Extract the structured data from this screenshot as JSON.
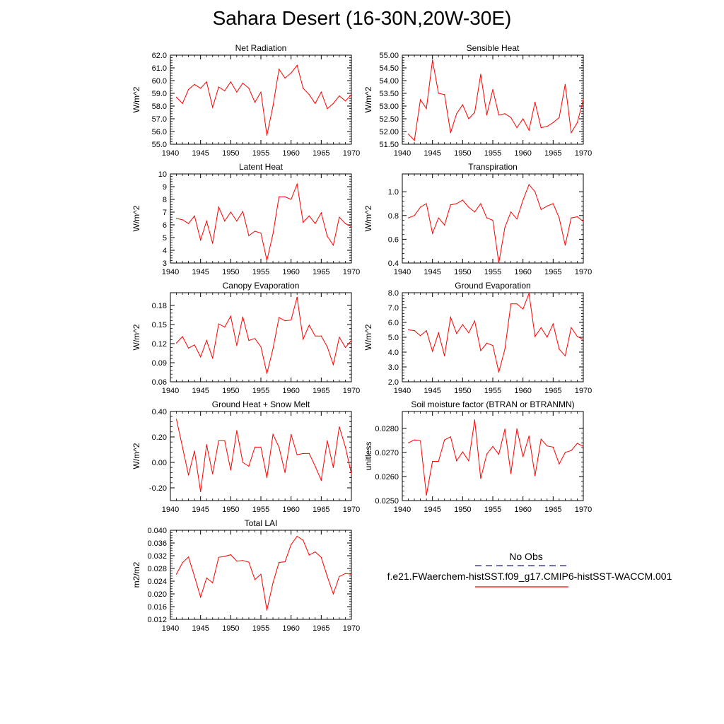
{
  "figure": {
    "title": "Sahara Desert (16-30N,20W-30E)"
  },
  "legend": {
    "items": [
      {
        "label": "No Obs",
        "color": "#1a1a8c",
        "style": "dashed"
      },
      {
        "label": "f.e21.FWaerchem-histSST.f09_g17.CMIP6-histSST-WACCM.001",
        "color": "#ff0000",
        "style": "solid"
      }
    ]
  },
  "chart_data": [
    {
      "type": "line",
      "title": "Net Radiation",
      "ylabel": "W/m^2",
      "xlim": [
        1940,
        1970
      ],
      "ylim": [
        55.0,
        62.0
      ],
      "xticks": [
        1940,
        1945,
        1950,
        1955,
        1960,
        1965,
        1970
      ],
      "xtick_labels": [
        "1940",
        "1945",
        "1950",
        "1955",
        "1960",
        "1965",
        "1970"
      ],
      "yticks": [
        55.0,
        56.0,
        57.0,
        58.0,
        59.0,
        60.0,
        61.0,
        62.0
      ],
      "ytick_labels": [
        "55.0",
        "56.0",
        "57.0",
        "58.0",
        "59.0",
        "60.0",
        "61.0",
        "62.0"
      ],
      "grid": false,
      "series": [
        {
          "color": "#ff0000",
          "x": [
            1941,
            1942,
            1943,
            1944,
            1945,
            1946,
            1947,
            1948,
            1949,
            1950,
            1951,
            1952,
            1953,
            1954,
            1955,
            1956,
            1957,
            1958,
            1959,
            1960,
            1961,
            1962,
            1963,
            1964,
            1965,
            1966,
            1967,
            1968,
            1969,
            1970
          ],
          "y": [
            58.7,
            58.2,
            59.3,
            59.7,
            59.4,
            59.9,
            57.9,
            59.5,
            59.2,
            59.9,
            59.1,
            59.8,
            59.4,
            58.3,
            59.1,
            55.7,
            58.0,
            60.9,
            60.2,
            60.6,
            61.2,
            59.4,
            58.9,
            58.2,
            59.1,
            57.8,
            58.2,
            58.8,
            58.4,
            58.9
          ]
        }
      ]
    },
    {
      "type": "line",
      "title": "Sensible Heat",
      "ylabel": "W/m^2",
      "xlim": [
        1940,
        1970
      ],
      "ylim": [
        51.5,
        55.0
      ],
      "xticks": [
        1940,
        1945,
        1950,
        1955,
        1960,
        1965,
        1970
      ],
      "xtick_labels": [
        "1940",
        "1945",
        "1950",
        "1955",
        "1960",
        "1965",
        "1970"
      ],
      "yticks": [
        51.5,
        52.0,
        52.5,
        53.0,
        53.5,
        54.0,
        54.5,
        55.0
      ],
      "ytick_labels": [
        "51.50",
        "52.00",
        "52.50",
        "53.00",
        "53.50",
        "54.00",
        "54.50",
        "55.00"
      ],
      "grid": false,
      "series": [
        {
          "color": "#ff0000",
          "x": [
            1941,
            1942,
            1943,
            1944,
            1945,
            1946,
            1947,
            1948,
            1949,
            1950,
            1951,
            1952,
            1953,
            1954,
            1955,
            1956,
            1957,
            1958,
            1959,
            1960,
            1961,
            1962,
            1963,
            1964,
            1965,
            1966,
            1967,
            1968,
            1969,
            1970
          ],
          "y": [
            51.9,
            51.65,
            53.25,
            52.9,
            54.8,
            53.5,
            53.45,
            51.95,
            52.7,
            53.05,
            52.5,
            52.75,
            54.25,
            52.65,
            53.65,
            52.65,
            52.7,
            52.55,
            52.15,
            52.5,
            52.05,
            53.15,
            52.15,
            52.2,
            52.35,
            52.55,
            53.85,
            51.95,
            52.35,
            53.25
          ]
        }
      ]
    },
    {
      "type": "line",
      "title": "Latent Heat",
      "ylabel": "W/m^2",
      "xlim": [
        1940,
        1970
      ],
      "ylim": [
        3,
        10
      ],
      "xticks": [
        1940,
        1945,
        1950,
        1955,
        1960,
        1965,
        1970
      ],
      "xtick_labels": [
        "1940",
        "1945",
        "1950",
        "1955",
        "1960",
        "1965",
        "1970"
      ],
      "yticks": [
        3,
        4,
        5,
        6,
        7,
        8,
        9,
        10
      ],
      "ytick_labels": [
        "3",
        "4",
        "5",
        "6",
        "7",
        "8",
        "9",
        "10"
      ],
      "grid": false,
      "series": [
        {
          "color": "#ff0000",
          "x": [
            1941,
            1942,
            1943,
            1944,
            1945,
            1946,
            1947,
            1948,
            1949,
            1950,
            1951,
            1952,
            1953,
            1954,
            1955,
            1956,
            1957,
            1958,
            1959,
            1960,
            1961,
            1962,
            1963,
            1964,
            1965,
            1966,
            1967,
            1968,
            1969,
            1970
          ],
          "y": [
            6.5,
            6.4,
            6.1,
            6.7,
            4.8,
            6.3,
            4.55,
            7.4,
            6.3,
            7.0,
            6.3,
            7.05,
            5.15,
            5.5,
            5.35,
            3.2,
            5.3,
            8.2,
            8.2,
            8.0,
            9.2,
            6.2,
            6.7,
            6.1,
            6.95,
            5.1,
            4.4,
            6.6,
            6.1,
            5.85
          ]
        }
      ]
    },
    {
      "type": "line",
      "title": "Transpiration",
      "ylabel": "W/m^2",
      "xlim": [
        1940,
        1970
      ],
      "ylim": [
        0.4,
        1.15
      ],
      "xticks": [
        1940,
        1945,
        1950,
        1955,
        1960,
        1965,
        1970
      ],
      "xtick_labels": [
        "1940",
        "1945",
        "1950",
        "1955",
        "1960",
        "1965",
        "1970"
      ],
      "yticks": [
        0.4,
        0.6,
        0.8,
        1.0
      ],
      "ytick_labels": [
        "0.4",
        "0.6",
        "0.8",
        "1.0"
      ],
      "grid": false,
      "series": [
        {
          "color": "#ff0000",
          "x": [
            1941,
            1942,
            1943,
            1944,
            1945,
            1946,
            1947,
            1948,
            1949,
            1950,
            1951,
            1952,
            1953,
            1954,
            1955,
            1956,
            1957,
            1958,
            1959,
            1960,
            1961,
            1962,
            1963,
            1964,
            1965,
            1966,
            1967,
            1968,
            1969,
            1970
          ],
          "y": [
            0.78,
            0.8,
            0.87,
            0.9,
            0.65,
            0.78,
            0.72,
            0.89,
            0.9,
            0.93,
            0.87,
            0.83,
            0.9,
            0.78,
            0.76,
            0.4,
            0.7,
            0.83,
            0.77,
            0.93,
            1.06,
            1.0,
            0.85,
            0.88,
            0.9,
            0.78,
            0.55,
            0.78,
            0.79,
            0.75
          ]
        }
      ]
    },
    {
      "type": "line",
      "title": "Canopy Evaporation",
      "ylabel": "W/m^2",
      "xlim": [
        1940,
        1970
      ],
      "ylim": [
        0.06,
        0.2
      ],
      "xticks": [
        1940,
        1945,
        1950,
        1955,
        1960,
        1965,
        1970
      ],
      "xtick_labels": [
        "1940",
        "1945",
        "1950",
        "1955",
        "1960",
        "1965",
        "1970"
      ],
      "yticks": [
        0.06,
        0.09,
        0.12,
        0.15,
        0.18
      ],
      "ytick_labels": [
        "0.06",
        "0.09",
        "0.12",
        "0.15",
        "0.18"
      ],
      "grid": false,
      "series": [
        {
          "color": "#ff0000",
          "x": [
            1941,
            1942,
            1943,
            1944,
            1945,
            1946,
            1947,
            1948,
            1949,
            1950,
            1951,
            1952,
            1953,
            1954,
            1955,
            1956,
            1957,
            1958,
            1959,
            1960,
            1961,
            1962,
            1963,
            1964,
            1965,
            1966,
            1967,
            1968,
            1969,
            1970
          ],
          "y": [
            0.121,
            0.131,
            0.113,
            0.118,
            0.099,
            0.125,
            0.097,
            0.151,
            0.146,
            0.163,
            0.117,
            0.162,
            0.125,
            0.128,
            0.115,
            0.073,
            0.112,
            0.161,
            0.156,
            0.157,
            0.193,
            0.127,
            0.149,
            0.132,
            0.132,
            0.115,
            0.087,
            0.13,
            0.114,
            0.125
          ]
        }
      ]
    },
    {
      "type": "line",
      "title": "Ground Evaporation",
      "ylabel": "W/m^2",
      "xlim": [
        1940,
        1970
      ],
      "ylim": [
        2.0,
        8.0
      ],
      "xticks": [
        1940,
        1945,
        1950,
        1955,
        1960,
        1965,
        1970
      ],
      "xtick_labels": [
        "1940",
        "1945",
        "1950",
        "1955",
        "1960",
        "1965",
        "1970"
      ],
      "yticks": [
        2.0,
        3.0,
        4.0,
        5.0,
        6.0,
        7.0,
        8.0
      ],
      "ytick_labels": [
        "2.0",
        "3.0",
        "4.0",
        "5.0",
        "6.0",
        "7.0",
        "8.0"
      ],
      "grid": false,
      "series": [
        {
          "color": "#ff0000",
          "x": [
            1941,
            1942,
            1943,
            1944,
            1945,
            1946,
            1947,
            1948,
            1949,
            1950,
            1951,
            1952,
            1953,
            1954,
            1955,
            1956,
            1957,
            1958,
            1959,
            1960,
            1961,
            1962,
            1963,
            1964,
            1965,
            1966,
            1967,
            1968,
            1969,
            1970
          ],
          "y": [
            5.5,
            5.45,
            5.1,
            5.45,
            4.05,
            5.3,
            3.75,
            6.35,
            5.25,
            5.85,
            5.3,
            6.1,
            4.1,
            4.6,
            4.45,
            2.65,
            4.2,
            7.25,
            7.25,
            6.9,
            7.95,
            5.05,
            5.65,
            5.0,
            5.9,
            4.2,
            3.75,
            5.65,
            5.05,
            4.85
          ]
        }
      ]
    },
    {
      "type": "line",
      "title": "Ground Heat + Snow Melt",
      "ylabel": "W/m^2",
      "xlim": [
        1940,
        1970
      ],
      "ylim": [
        -0.3,
        0.4
      ],
      "xticks": [
        1940,
        1945,
        1950,
        1955,
        1960,
        1965,
        1970
      ],
      "xtick_labels": [
        "1940",
        "1945",
        "1950",
        "1955",
        "1960",
        "1965",
        "1970"
      ],
      "yticks": [
        -0.2,
        0.0,
        0.2,
        0.4
      ],
      "ytick_labels": [
        "-0.20",
        "0.00",
        "0.20",
        "0.40"
      ],
      "grid": false,
      "series": [
        {
          "color": "#ff0000",
          "x": [
            1941,
            1942,
            1943,
            1944,
            1945,
            1946,
            1947,
            1948,
            1949,
            1950,
            1951,
            1952,
            1953,
            1954,
            1955,
            1956,
            1957,
            1958,
            1959,
            1960,
            1961,
            1962,
            1963,
            1964,
            1965,
            1966,
            1967,
            1968,
            1969,
            1970
          ],
          "y": [
            0.34,
            0.12,
            -0.1,
            0.09,
            -0.23,
            0.14,
            -0.09,
            0.17,
            0.17,
            -0.06,
            0.25,
            0.0,
            -0.03,
            0.12,
            0.12,
            -0.12,
            0.22,
            0.12,
            -0.08,
            0.22,
            0.06,
            0.07,
            0.07,
            -0.03,
            -0.14,
            0.17,
            -0.04,
            0.28,
            0.12,
            -0.09
          ]
        }
      ]
    },
    {
      "type": "line",
      "title": "Soil moisture factor (BTRAN or BTRANMN)",
      "ylabel": "unitless",
      "xlim": [
        1940,
        1970
      ],
      "ylim": [
        0.025,
        0.0287
      ],
      "xticks": [
        1940,
        1945,
        1950,
        1955,
        1960,
        1965,
        1970
      ],
      "xtick_labels": [
        "1940",
        "1945",
        "1950",
        "1955",
        "1960",
        "1965",
        "1970"
      ],
      "yticks": [
        0.025,
        0.026,
        0.027,
        0.028
      ],
      "ytick_labels": [
        "0.0250",
        "0.0260",
        "0.0270",
        "0.0280"
      ],
      "grid": false,
      "series": [
        {
          "color": "#ff0000",
          "x": [
            1941,
            1942,
            1943,
            1944,
            1945,
            1946,
            1947,
            1948,
            1949,
            1950,
            1951,
            1952,
            1953,
            1954,
            1955,
            1956,
            1957,
            1958,
            1959,
            1960,
            1961,
            1962,
            1963,
            1964,
            1965,
            1966,
            1967,
            1968,
            1969,
            1970
          ],
          "y": [
            0.0274,
            0.02752,
            0.02748,
            0.02522,
            0.02663,
            0.02663,
            0.02752,
            0.02765,
            0.02665,
            0.02702,
            0.02665,
            0.02835,
            0.02592,
            0.02693,
            0.02725,
            0.02692,
            0.02797,
            0.02612,
            0.02798,
            0.02682,
            0.02768,
            0.02603,
            0.02755,
            0.02727,
            0.02722,
            0.02652,
            0.027,
            0.02708,
            0.02738,
            0.02725
          ]
        }
      ]
    },
    {
      "type": "line",
      "title": "Total LAI",
      "ylabel": "m2/m2",
      "xlim": [
        1940,
        1970
      ],
      "ylim": [
        0.012,
        0.04
      ],
      "xticks": [
        1940,
        1945,
        1950,
        1955,
        1960,
        1965,
        1970
      ],
      "xtick_labels": [
        "1940",
        "1945",
        "1950",
        "1955",
        "1960",
        "1965",
        "1970"
      ],
      "yticks": [
        0.012,
        0.016,
        0.02,
        0.024,
        0.028,
        0.032,
        0.036,
        0.04
      ],
      "ytick_labels": [
        "0.012",
        "0.016",
        "0.020",
        "0.024",
        "0.028",
        "0.032",
        "0.036",
        "0.040"
      ],
      "grid": false,
      "series": [
        {
          "color": "#ff0000",
          "x": [
            1941,
            1942,
            1943,
            1944,
            1945,
            1946,
            1947,
            1948,
            1949,
            1950,
            1951,
            1952,
            1953,
            1954,
            1955,
            1956,
            1957,
            1958,
            1959,
            1960,
            1961,
            1962,
            1963,
            1964,
            1965,
            1966,
            1967,
            1968,
            1969,
            1970
          ],
          "y": [
            0.0262,
            0.0298,
            0.0316,
            0.0255,
            0.019,
            0.025,
            0.0235,
            0.0315,
            0.0318,
            0.0323,
            0.0303,
            0.0305,
            0.03,
            0.0245,
            0.0262,
            0.0149,
            0.0235,
            0.0299,
            0.0301,
            0.0355,
            0.0381,
            0.0369,
            0.0322,
            0.0332,
            0.0315,
            0.0255,
            0.02,
            0.0255,
            0.0264,
            0.0262
          ]
        }
      ]
    }
  ]
}
